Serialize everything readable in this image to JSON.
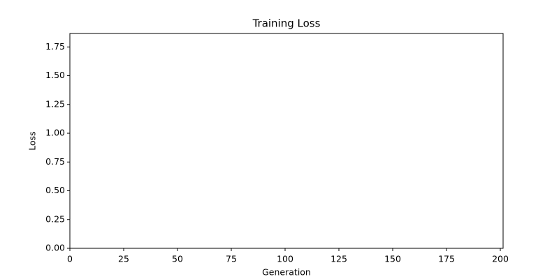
{
  "chart_data": {
    "type": "line",
    "title": "Training Loss",
    "xlabel": "Generation",
    "ylabel": "Loss",
    "xlim": [
      0,
      201.3
    ],
    "xticks": [
      0,
      25,
      50,
      75,
      100,
      125,
      150,
      175,
      200
    ],
    "ylim": [
      0,
      1.867
    ],
    "yticks": [
      {
        "value": 0,
        "label": "0.00"
      },
      {
        "value": 0.25,
        "label": "0.25"
      },
      {
        "value": 0.5,
        "label": "0.50"
      },
      {
        "value": 0.75,
        "label": "0.75"
      },
      {
        "value": 1,
        "label": "1.00"
      },
      {
        "value": 1.25,
        "label": "1.25"
      },
      {
        "value": 1.5,
        "label": "1.50"
      },
      {
        "value": 1.75,
        "label": "1.75"
      }
    ],
    "grid": false
  }
}
